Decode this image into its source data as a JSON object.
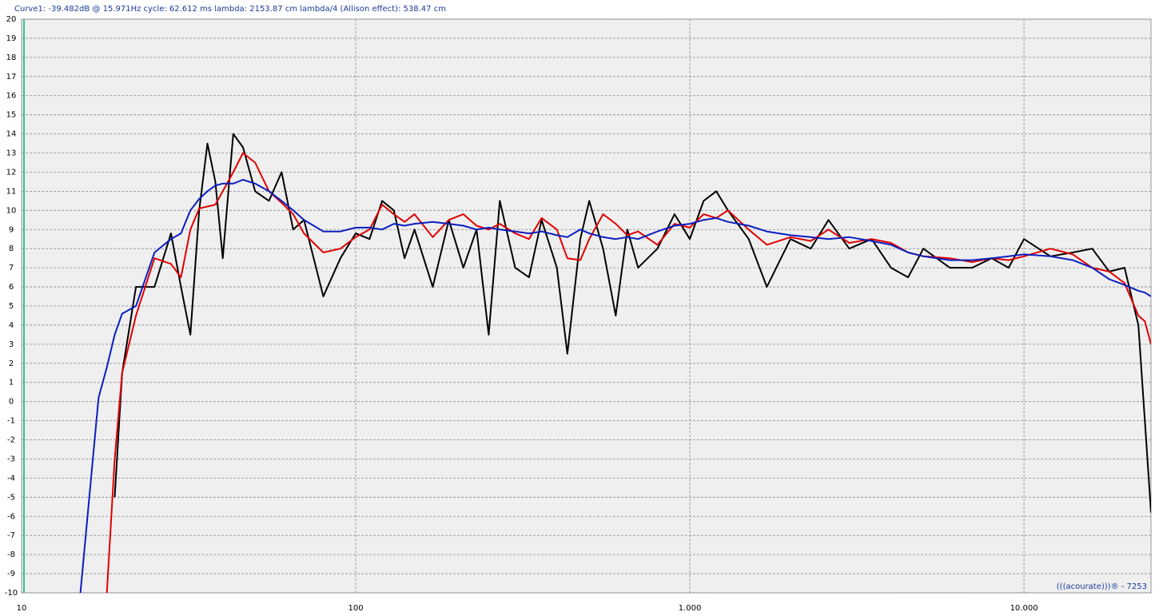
{
  "chart_data": {
    "type": "line",
    "title": "Curve1:  -39.482dB @ 15.971Hz    cycle: 62.612 ms    lambda: 2153.87 cm   lambda/4 (Allison effect): 538.47 cm",
    "annotation": "(((acourate)))® - 7253",
    "log_x": true,
    "grid": true,
    "xlim": [
      10,
      24000
    ],
    "ylim": [
      -10,
      20
    ],
    "xticks": [
      10,
      100,
      {
        "value": 1000,
        "label": "1.000"
      },
      {
        "value": 10000,
        "label": "10.000"
      }
    ],
    "yticks": [
      -10,
      -9,
      -8,
      -7,
      -6,
      -5,
      -4,
      -3,
      -2,
      -1,
      0,
      1,
      2,
      3,
      4,
      5,
      6,
      7,
      8,
      9,
      10,
      11,
      12,
      13,
      14,
      15,
      16,
      17,
      18,
      19,
      20
    ],
    "x": [
      15,
      17,
      18,
      19,
      20,
      22,
      25,
      28,
      30,
      32,
      34,
      36,
      38,
      40,
      43,
      46,
      50,
      55,
      60,
      65,
      70,
      80,
      90,
      100,
      110,
      120,
      130,
      140,
      150,
      170,
      190,
      210,
      230,
      250,
      270,
      300,
      330,
      360,
      400,
      430,
      470,
      500,
      550,
      600,
      650,
      700,
      800,
      900,
      1000,
      1100,
      1200,
      1300,
      1500,
      1700,
      2000,
      2300,
      2600,
      3000,
      3500,
      4000,
      4500,
      5000,
      6000,
      7000,
      8000,
      9000,
      10000,
      12000,
      14000,
      16000,
      18000,
      20000,
      22000,
      23000,
      24000
    ],
    "series": [
      {
        "color": "#000000",
        "values": [
          null,
          null,
          null,
          -5,
          1.5,
          6.0,
          6.0,
          8.8,
          6.0,
          3.5,
          10.0,
          13.5,
          11.5,
          7.5,
          14.0,
          13.3,
          11.0,
          10.5,
          12.0,
          9.0,
          9.5,
          5.5,
          7.5,
          8.8,
          8.5,
          10.5,
          10.0,
          7.5,
          9.0,
          6.0,
          9.5,
          7.0,
          9.0,
          3.5,
          10.5,
          7.0,
          6.5,
          9.5,
          7.0,
          2.5,
          8.5,
          10.5,
          8.0,
          4.5,
          9.0,
          7.0,
          8.0,
          9.8,
          8.5,
          10.5,
          11.0,
          10.0,
          8.5,
          6.0,
          8.5,
          8.0,
          9.5,
          8.0,
          8.5,
          7.0,
          6.5,
          8.0,
          7.0,
          7.0,
          7.5,
          7.0,
          8.5,
          7.6,
          7.8,
          8.0,
          6.8,
          7.0,
          4.0,
          -1.0,
          -5.8
        ]
      },
      {
        "color": "#e00000",
        "values": [
          null,
          null,
          -10,
          -3,
          1.5,
          4.5,
          7.5,
          7.2,
          6.5,
          9.0,
          10.1,
          10.2,
          10.3,
          11.0,
          12.0,
          13.0,
          12.5,
          11.0,
          10.4,
          9.8,
          8.8,
          7.8,
          8.0,
          8.6,
          9.0,
          10.3,
          9.8,
          9.4,
          9.8,
          8.6,
          9.5,
          9.8,
          9.2,
          9.0,
          9.3,
          8.8,
          8.5,
          9.6,
          9.0,
          7.5,
          7.4,
          8.5,
          9.8,
          9.3,
          8.7,
          8.9,
          8.2,
          9.3,
          9.1,
          9.8,
          9.6,
          10.0,
          9.0,
          8.2,
          8.6,
          8.4,
          9.0,
          8.3,
          8.5,
          8.3,
          7.8,
          7.6,
          7.5,
          7.3,
          7.5,
          7.4,
          7.6,
          8.0,
          7.7,
          7.0,
          6.8,
          6.2,
          4.5,
          4.2,
          3.0
        ]
      },
      {
        "color": "#0a1ebe",
        "values": [
          -10,
          0.2,
          1.8,
          3.5,
          4.6,
          5.0,
          7.8,
          8.5,
          8.8,
          10,
          10.6,
          11.0,
          11.3,
          11.4,
          11.4,
          11.6,
          11.4,
          11.0,
          10.5,
          10.0,
          9.5,
          8.9,
          8.9,
          9.1,
          9.1,
          9.0,
          9.3,
          9.2,
          9.3,
          9.4,
          9.3,
          9.2,
          9.0,
          9.1,
          9.0,
          8.9,
          8.8,
          8.9,
          8.7,
          8.6,
          9.0,
          8.8,
          8.6,
          8.5,
          8.6,
          8.5,
          8.9,
          9.2,
          9.3,
          9.5,
          9.6,
          9.4,
          9.2,
          8.9,
          8.7,
          8.6,
          8.5,
          8.6,
          8.4,
          8.2,
          7.8,
          7.6,
          7.4,
          7.4,
          7.5,
          7.6,
          7.7,
          7.6,
          7.4,
          7.0,
          6.4,
          6.1,
          5.8,
          5.7,
          5.5
        ]
      }
    ]
  }
}
